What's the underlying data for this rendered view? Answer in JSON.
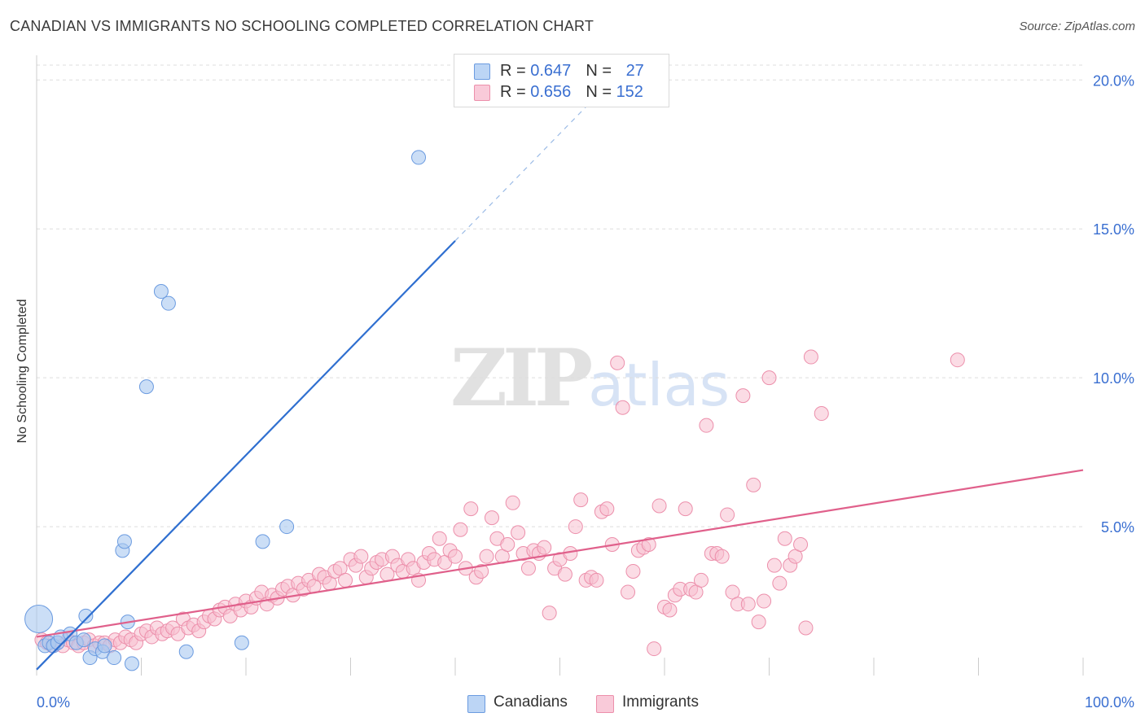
{
  "title": "CANADIAN VS IMMIGRANTS NO SCHOOLING COMPLETED CORRELATION CHART",
  "source": "Source: ZipAtlas.com",
  "watermark": {
    "zip": "ZIP",
    "atlas": "atlas"
  },
  "legend_top": [
    {
      "r_label": "R = ",
      "r_value": "0.647",
      "n_label": "N = ",
      "n_value": "27"
    },
    {
      "r_label": "R = ",
      "r_value": "0.656",
      "n_label": "N = ",
      "n_value": "152"
    }
  ],
  "legend_bottom": [
    "Canadians",
    "Immigrants"
  ],
  "colors": {
    "canadians_fill": "#a9c8f0",
    "canadians_stroke": "#6b9be0",
    "canadians_line": "#2f6fd0",
    "immigrants_fill": "#f7bfd0",
    "immigrants_stroke": "#ec8fab",
    "immigrants_line": "#e0608b",
    "axis_text": "#3a6fd1",
    "grid": "#dddddd"
  },
  "chart_data": {
    "type": "scatter",
    "title": "CANADIAN VS IMMIGRANTS NO SCHOOLING COMPLETED CORRELATION CHART",
    "xlabel": "",
    "ylabel": "No Schooling Completed",
    "xlim": [
      0,
      100
    ],
    "ylim": [
      0,
      20.5
    ],
    "x_tick_labels": [
      "0.0%",
      "100.0%"
    ],
    "y_ticks": [
      5,
      10,
      15,
      20
    ],
    "y_tick_labels": [
      "5.0%",
      "10.0%",
      "15.0%",
      "20.0%"
    ],
    "grid": true,
    "legend_position": "top-center",
    "series": [
      {
        "name": "Canadians",
        "r": 0.647,
        "n": 27,
        "trend": {
          "x0": 0,
          "y0": 0.2,
          "x_solid_end": 40,
          "x1": 55,
          "y1": 20
        },
        "points": [
          [
            0.2,
            1.9,
            3
          ],
          [
            0.8,
            1.0,
            1
          ],
          [
            1.2,
            1.1,
            1
          ],
          [
            1.6,
            1.0,
            1
          ],
          [
            2.0,
            1.1,
            1
          ],
          [
            2.3,
            1.3,
            1
          ],
          [
            3.2,
            1.4,
            1
          ],
          [
            3.8,
            1.1,
            1
          ],
          [
            4.5,
            1.2,
            1
          ],
          [
            4.7,
            2.0,
            1
          ],
          [
            5.1,
            0.6,
            1
          ],
          [
            5.6,
            0.9,
            1
          ],
          [
            6.3,
            0.8,
            1
          ],
          [
            7.4,
            0.6,
            1
          ],
          [
            8.2,
            4.2,
            1
          ],
          [
            8.4,
            4.5,
            1
          ],
          [
            8.7,
            1.8,
            1
          ],
          [
            9.1,
            0.4,
            1
          ],
          [
            10.5,
            9.7,
            1
          ],
          [
            11.9,
            12.9,
            1
          ],
          [
            12.6,
            12.5,
            1
          ],
          [
            14.3,
            0.8,
            1
          ],
          [
            19.6,
            1.1,
            1
          ],
          [
            21.6,
            4.5,
            1
          ],
          [
            23.9,
            5.0,
            1
          ],
          [
            36.5,
            17.4,
            1
          ],
          [
            6.5,
            1.0,
            1
          ]
        ]
      },
      {
        "name": "Immigrants",
        "r": 0.656,
        "n": 152,
        "trend": {
          "x0": 0,
          "y0": 1.3,
          "x1": 100,
          "y1": 6.9
        },
        "points": [
          [
            0.5,
            1.2
          ],
          [
            1.0,
            1.1
          ],
          [
            1.5,
            1.0
          ],
          [
            2.0,
            1.1
          ],
          [
            2.5,
            1.0
          ],
          [
            3.0,
            1.2
          ],
          [
            3.5,
            1.1
          ],
          [
            4.0,
            1.0
          ],
          [
            4.5,
            1.1
          ],
          [
            5.0,
            1.2
          ],
          [
            5.5,
            1.0
          ],
          [
            6.0,
            1.1
          ],
          [
            6.5,
            1.1
          ],
          [
            7.0,
            1.0
          ],
          [
            7.5,
            1.2
          ],
          [
            8.0,
            1.1
          ],
          [
            8.5,
            1.3
          ],
          [
            9.0,
            1.2
          ],
          [
            9.5,
            1.1
          ],
          [
            10.0,
            1.4
          ],
          [
            10.5,
            1.5
          ],
          [
            11.0,
            1.3
          ],
          [
            11.5,
            1.6
          ],
          [
            12.0,
            1.4
          ],
          [
            12.5,
            1.5
          ],
          [
            13.0,
            1.6
          ],
          [
            13.5,
            1.4
          ],
          [
            14.0,
            1.9
          ],
          [
            14.5,
            1.6
          ],
          [
            15.0,
            1.7
          ],
          [
            15.5,
            1.5
          ],
          [
            16.0,
            1.8
          ],
          [
            16.5,
            2.0
          ],
          [
            17.0,
            1.9
          ],
          [
            17.5,
            2.2
          ],
          [
            18.0,
            2.3
          ],
          [
            18.5,
            2.0
          ],
          [
            19.0,
            2.4
          ],
          [
            19.5,
            2.2
          ],
          [
            20.0,
            2.5
          ],
          [
            20.5,
            2.3
          ],
          [
            21.0,
            2.6
          ],
          [
            21.5,
            2.8
          ],
          [
            22.0,
            2.4
          ],
          [
            22.5,
            2.7
          ],
          [
            23.0,
            2.6
          ],
          [
            23.5,
            2.9
          ],
          [
            24.0,
            3.0
          ],
          [
            24.5,
            2.7
          ],
          [
            25.0,
            3.1
          ],
          [
            25.5,
            2.9
          ],
          [
            26.0,
            3.2
          ],
          [
            26.5,
            3.0
          ],
          [
            27.0,
            3.4
          ],
          [
            27.5,
            3.3
          ],
          [
            28.0,
            3.1
          ],
          [
            28.5,
            3.5
          ],
          [
            29.0,
            3.6
          ],
          [
            29.5,
            3.2
          ],
          [
            30.0,
            3.9
          ],
          [
            30.5,
            3.7
          ],
          [
            31.0,
            4.0
          ],
          [
            31.5,
            3.3
          ],
          [
            32.0,
            3.6
          ],
          [
            32.5,
            3.8
          ],
          [
            33.0,
            3.9
          ],
          [
            33.5,
            3.4
          ],
          [
            34.0,
            4.0
          ],
          [
            34.5,
            3.7
          ],
          [
            35.0,
            3.5
          ],
          [
            35.5,
            3.9
          ],
          [
            36.0,
            3.6
          ],
          [
            36.5,
            3.2
          ],
          [
            37.0,
            3.8
          ],
          [
            37.5,
            4.1
          ],
          [
            38.0,
            3.9
          ],
          [
            38.5,
            4.6
          ],
          [
            39.0,
            3.8
          ],
          [
            39.5,
            4.2
          ],
          [
            40.0,
            4.0
          ],
          [
            40.5,
            4.9
          ],
          [
            41.0,
            3.6
          ],
          [
            41.5,
            5.6
          ],
          [
            42.0,
            3.3
          ],
          [
            42.5,
            3.5
          ],
          [
            43.0,
            4.0
          ],
          [
            43.5,
            5.3
          ],
          [
            44.0,
            4.6
          ],
          [
            44.5,
            4.0
          ],
          [
            45.0,
            4.4
          ],
          [
            45.5,
            5.8
          ],
          [
            46.0,
            4.8
          ],
          [
            46.5,
            4.1
          ],
          [
            47.0,
            3.6
          ],
          [
            47.5,
            4.2
          ],
          [
            48.0,
            4.1
          ],
          [
            48.5,
            4.3
          ],
          [
            49.0,
            2.1
          ],
          [
            49.5,
            3.6
          ],
          [
            50.0,
            3.9
          ],
          [
            50.5,
            3.4
          ],
          [
            51.0,
            4.1
          ],
          [
            51.5,
            5.0
          ],
          [
            52.0,
            5.9
          ],
          [
            52.5,
            3.2
          ],
          [
            53.0,
            3.3
          ],
          [
            53.5,
            3.2
          ],
          [
            54.0,
            5.5
          ],
          [
            54.5,
            5.6
          ],
          [
            55.0,
            4.4
          ],
          [
            55.5,
            10.5
          ],
          [
            56.0,
            9.0
          ],
          [
            56.5,
            2.8
          ],
          [
            57.0,
            3.5
          ],
          [
            57.5,
            4.2
          ],
          [
            58.0,
            4.3
          ],
          [
            58.5,
            4.4
          ],
          [
            59.0,
            0.9
          ],
          [
            59.5,
            5.7
          ],
          [
            60.0,
            2.3
          ],
          [
            60.5,
            2.2
          ],
          [
            61.0,
            2.7
          ],
          [
            61.5,
            2.9
          ],
          [
            62.0,
            5.6
          ],
          [
            62.5,
            2.9
          ],
          [
            63.0,
            2.8
          ],
          [
            63.5,
            3.2
          ],
          [
            64.0,
            8.4
          ],
          [
            64.5,
            4.1
          ],
          [
            65.0,
            4.1
          ],
          [
            65.5,
            4.0
          ],
          [
            66.0,
            5.4
          ],
          [
            66.5,
            2.8
          ],
          [
            67.0,
            2.4
          ],
          [
            67.5,
            9.4
          ],
          [
            68.0,
            2.4
          ],
          [
            68.5,
            6.4
          ],
          [
            69.0,
            1.8
          ],
          [
            69.5,
            2.5
          ],
          [
            70.0,
            10.0
          ],
          [
            70.5,
            3.7
          ],
          [
            71.0,
            3.1
          ],
          [
            71.5,
            4.6
          ],
          [
            72.0,
            3.7
          ],
          [
            72.5,
            4.0
          ],
          [
            73.0,
            4.4
          ],
          [
            73.5,
            1.6
          ],
          [
            74.0,
            10.7
          ],
          [
            75.0,
            8.8
          ],
          [
            88.0,
            10.6
          ]
        ]
      }
    ]
  }
}
